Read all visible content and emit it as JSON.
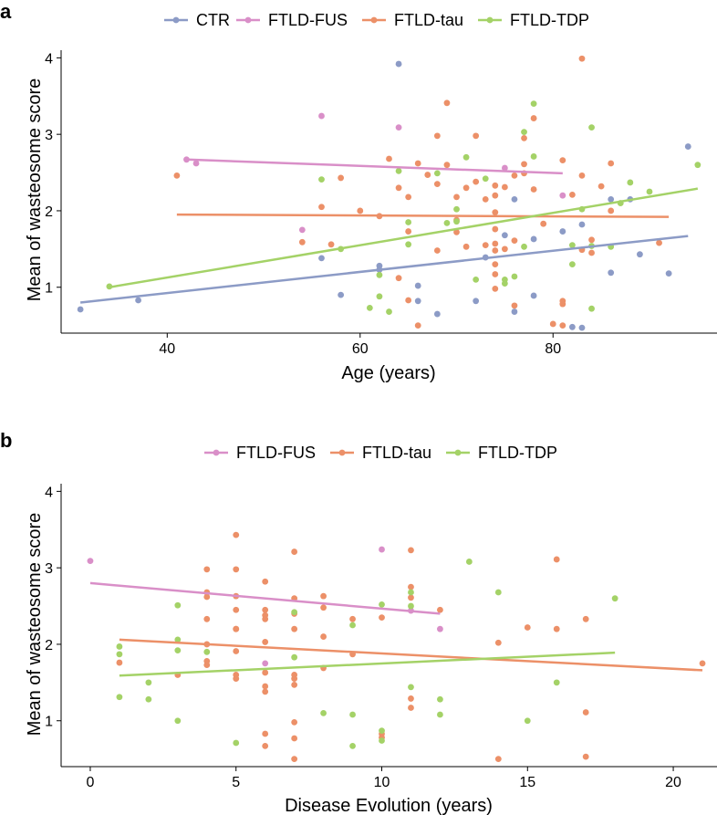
{
  "colors": {
    "CTR": "#8c9bc6",
    "FTLD-FUS": "#d98fc8",
    "FTLD-tau": "#ec9068",
    "FTLD-TDP": "#a4d267"
  },
  "chart_data": [
    {
      "panel": "a",
      "type": "scatter",
      "xlabel": "Age (years)",
      "ylabel": "Mean of wasteosome score",
      "xlim": [
        29,
        97
      ],
      "ylim": [
        0.4,
        4.1
      ],
      "xticks": [
        "40",
        "60",
        "80"
      ],
      "yticks": [
        "1",
        "2",
        "3",
        "4"
      ],
      "legend": [
        "CTR",
        "FTLD-FUS",
        "FTLD-tau",
        "FTLD-TDP"
      ],
      "series": [
        {
          "name": "CTR",
          "points": [
            [
              31,
              0.71
            ],
            [
              37,
              0.83
            ],
            [
              56,
              1.38
            ],
            [
              58,
              0.9
            ],
            [
              62,
              1.23
            ],
            [
              62,
              1.28
            ],
            [
              64,
              3.92
            ],
            [
              66,
              0.82
            ],
            [
              66,
              1.02
            ],
            [
              68,
              0.65
            ],
            [
              72,
              0.82
            ],
            [
              73,
              1.39
            ],
            [
              75,
              1.68
            ],
            [
              76,
              0.68
            ],
            [
              76,
              2.15
            ],
            [
              78,
              0.89
            ],
            [
              78,
              1.63
            ],
            [
              81,
              1.73
            ],
            [
              82,
              0.48
            ],
            [
              83,
              0.47
            ],
            [
              83,
              1.82
            ],
            [
              86,
              1.19
            ],
            [
              86,
              2.15
            ],
            [
              88,
              2.15
            ],
            [
              89,
              1.43
            ],
            [
              92,
              1.18
            ],
            [
              94,
              2.84
            ]
          ],
          "fit": [
            [
              31,
              0.8
            ],
            [
              94,
              1.67
            ]
          ]
        },
        {
          "name": "FTLD-FUS",
          "points": [
            [
              42,
              2.67
            ],
            [
              43,
              2.62
            ],
            [
              54,
              1.75
            ],
            [
              56,
              3.24
            ],
            [
              64,
              3.09
            ],
            [
              75,
              2.56
            ],
            [
              81,
              2.2
            ]
          ],
          "fit": [
            [
              42,
              2.67
            ],
            [
              81,
              2.49
            ]
          ]
        },
        {
          "name": "FTLD-tau",
          "points": [
            [
              41,
              2.46
            ],
            [
              54,
              1.59
            ],
            [
              56,
              2.05
            ],
            [
              57,
              1.56
            ],
            [
              58,
              2.43
            ],
            [
              60,
              2.0
            ],
            [
              62,
              1.93
            ],
            [
              63,
              2.68
            ],
            [
              64,
              2.3
            ],
            [
              64,
              1.12
            ],
            [
              65,
              2.18
            ],
            [
              65,
              0.83
            ],
            [
              65,
              1.73
            ],
            [
              66,
              2.62
            ],
            [
              66,
              0.5
            ],
            [
              67,
              2.47
            ],
            [
              68,
              2.98
            ],
            [
              68,
              2.35
            ],
            [
              68,
              1.48
            ],
            [
              69,
              3.41
            ],
            [
              69,
              2.6
            ],
            [
              70,
              2.18
            ],
            [
              70,
              1.88
            ],
            [
              70,
              1.72
            ],
            [
              71,
              2.3
            ],
            [
              71,
              1.53
            ],
            [
              72,
              2.98
            ],
            [
              72,
              2.38
            ],
            [
              73,
              1.55
            ],
            [
              73,
              2.15
            ],
            [
              74,
              2.33
            ],
            [
              74,
              2.2
            ],
            [
              74,
              1.98
            ],
            [
              74,
              1.76
            ],
            [
              74,
              1.57
            ],
            [
              74,
              1.48
            ],
            [
              74,
              1.3
            ],
            [
              74,
              1.17
            ],
            [
              74,
              0.98
            ],
            [
              75,
              2.31
            ],
            [
              75,
              1.5
            ],
            [
              76,
              2.46
            ],
            [
              76,
              1.61
            ],
            [
              76,
              0.76
            ],
            [
              77,
              2.95
            ],
            [
              77,
              2.61
            ],
            [
              77,
              2.49
            ],
            [
              78,
              2.28
            ],
            [
              78,
              3.21
            ],
            [
              79,
              1.83
            ],
            [
              80,
              0.52
            ],
            [
              81,
              2.66
            ],
            [
              81,
              0.82
            ],
            [
              81,
              0.78
            ],
            [
              81,
              0.5
            ],
            [
              82,
              2.21
            ],
            [
              83,
              3.99
            ],
            [
              83,
              2.46
            ],
            [
              83,
              1.49
            ],
            [
              84,
              1.62
            ],
            [
              84,
              1.45
            ],
            [
              85,
              2.32
            ],
            [
              86,
              2.0
            ],
            [
              86,
              2.62
            ],
            [
              91,
              1.58
            ]
          ],
          "fit": [
            [
              41,
              1.95
            ],
            [
              92,
              1.92
            ]
          ]
        },
        {
          "name": "FTLD-TDP",
          "points": [
            [
              34,
              1.01
            ],
            [
              56,
              2.41
            ],
            [
              58,
              1.5
            ],
            [
              61,
              0.73
            ],
            [
              62,
              1.16
            ],
            [
              62,
              0.88
            ],
            [
              63,
              0.68
            ],
            [
              64,
              2.52
            ],
            [
              65,
              1.85
            ],
            [
              65,
              1.56
            ],
            [
              68,
              2.49
            ],
            [
              69,
              1.84
            ],
            [
              70,
              2.02
            ],
            [
              70,
              1.86
            ],
            [
              71,
              2.7
            ],
            [
              72,
              1.1
            ],
            [
              73,
              2.42
            ],
            [
              75,
              1.1
            ],
            [
              75,
              1.05
            ],
            [
              76,
              1.14
            ],
            [
              77,
              3.03
            ],
            [
              77,
              1.53
            ],
            [
              78,
              3.4
            ],
            [
              78,
              2.71
            ],
            [
              82,
              1.55
            ],
            [
              82,
              1.3
            ],
            [
              83,
              2.02
            ],
            [
              84,
              3.09
            ],
            [
              84,
              0.72
            ],
            [
              84,
              1.54
            ],
            [
              86,
              1.53
            ],
            [
              87,
              2.1
            ],
            [
              88,
              2.37
            ],
            [
              90,
              2.25
            ],
            [
              95,
              2.6
            ]
          ],
          "fit": [
            [
              34,
              1.0
            ],
            [
              95,
              2.29
            ]
          ]
        }
      ]
    },
    {
      "panel": "b",
      "type": "scatter",
      "xlabel": "Disease Evolution (years)",
      "ylabel": "Mean of wasteosome score",
      "xlim": [
        -1,
        21.5
      ],
      "ylim": [
        0.4,
        4.1
      ],
      "xticks": [
        "0",
        "5",
        "10",
        "15",
        "20"
      ],
      "yticks": [
        "1",
        "2",
        "3",
        "4"
      ],
      "legend": [
        "FTLD-FUS",
        "FTLD-tau",
        "FTLD-TDP"
      ],
      "series": [
        {
          "name": "FTLD-FUS",
          "points": [
            [
              0,
              3.09
            ],
            [
              6,
              1.75
            ],
            [
              10,
              3.24
            ],
            [
              11,
              2.44
            ],
            [
              12,
              2.2
            ]
          ],
          "fit": [
            [
              0,
              2.8
            ],
            [
              12,
              2.4
            ]
          ]
        },
        {
          "name": "FTLD-tau",
          "points": [
            [
              1,
              1.76
            ],
            [
              3,
              1.6
            ],
            [
              4,
              2.98
            ],
            [
              4,
              2.68
            ],
            [
              4,
              2.62
            ],
            [
              4,
              2.33
            ],
            [
              4,
              2.0
            ],
            [
              4,
              1.78
            ],
            [
              4,
              1.73
            ],
            [
              5,
              3.43
            ],
            [
              5,
              2.98
            ],
            [
              5,
              2.63
            ],
            [
              5,
              2.45
            ],
            [
              5,
              2.2
            ],
            [
              5,
              2.2
            ],
            [
              5,
              1.91
            ],
            [
              5,
              1.6
            ],
            [
              5,
              1.55
            ],
            [
              6,
              2.82
            ],
            [
              6,
              2.45
            ],
            [
              6,
              2.38
            ],
            [
              6,
              2.33
            ],
            [
              6,
              2.03
            ],
            [
              6,
              1.63
            ],
            [
              6,
              1.45
            ],
            [
              6,
              1.38
            ],
            [
              6,
              0.83
            ],
            [
              6,
              0.67
            ],
            [
              7,
              3.21
            ],
            [
              7,
              2.6
            ],
            [
              7,
              2.4
            ],
            [
              7,
              2.2
            ],
            [
              7,
              1.6
            ],
            [
              7,
              1.55
            ],
            [
              7,
              1.47
            ],
            [
              7,
              0.98
            ],
            [
              7,
              0.77
            ],
            [
              7,
              0.5
            ],
            [
              8,
              2.63
            ],
            [
              8,
              2.48
            ],
            [
              8,
              2.1
            ],
            [
              8,
              1.69
            ],
            [
              9,
              2.33
            ],
            [
              9,
              1.87
            ],
            [
              10,
              0.83
            ],
            [
              10,
              0.78
            ],
            [
              10,
              2.35
            ],
            [
              11,
              3.23
            ],
            [
              11,
              2.75
            ],
            [
              11,
              2.61
            ],
            [
              11,
              1.29
            ],
            [
              11,
              1.17
            ],
            [
              12,
              2.45
            ],
            [
              14,
              0.5
            ],
            [
              14,
              2.02
            ],
            [
              15,
              2.22
            ],
            [
              16,
              3.11
            ],
            [
              16,
              2.2
            ],
            [
              17,
              2.33
            ],
            [
              17,
              1.11
            ],
            [
              17,
              0.53
            ],
            [
              21,
              1.75
            ]
          ],
          "fit": [
            [
              1,
              2.06
            ],
            [
              21,
              1.66
            ]
          ]
        },
        {
          "name": "FTLD-TDP",
          "points": [
            [
              1,
              1.97
            ],
            [
              1,
              1.87
            ],
            [
              1,
              1.31
            ],
            [
              2,
              1.5
            ],
            [
              2,
              1.28
            ],
            [
              3,
              2.51
            ],
            [
              3,
              2.06
            ],
            [
              3,
              1.92
            ],
            [
              3,
              1.0
            ],
            [
              4,
              1.9
            ],
            [
              5,
              0.71
            ],
            [
              7,
              2.42
            ],
            [
              7,
              1.83
            ],
            [
              8,
              1.1
            ],
            [
              9,
              2.25
            ],
            [
              9,
              1.08
            ],
            [
              9,
              0.67
            ],
            [
              10,
              2.52
            ],
            [
              10,
              0.87
            ],
            [
              10,
              0.74
            ],
            [
              11,
              2.68
            ],
            [
              11,
              2.5
            ],
            [
              11,
              1.44
            ],
            [
              12,
              1.28
            ],
            [
              12,
              1.08
            ],
            [
              13,
              3.08
            ],
            [
              14,
              2.68
            ],
            [
              15,
              1.0
            ],
            [
              16,
              1.5
            ],
            [
              18,
              2.6
            ]
          ],
          "fit": [
            [
              1,
              1.59
            ],
            [
              18,
              1.89
            ]
          ]
        }
      ]
    }
  ]
}
